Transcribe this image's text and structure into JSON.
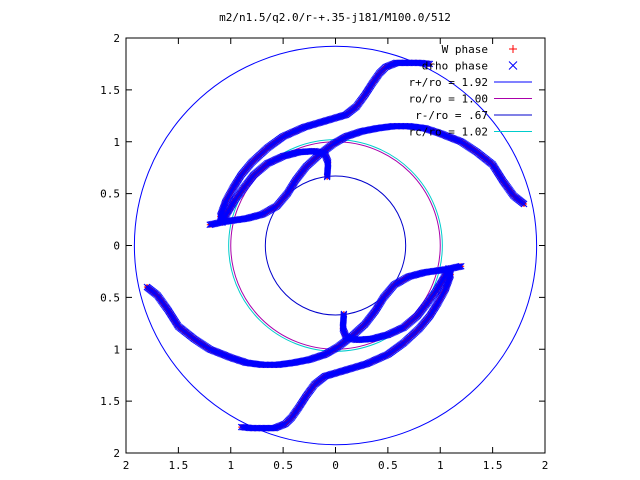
{
  "chart_data": {
    "type": "scatter",
    "title": "m2/n1.5/q2.0/r-+.35-j181/M100.0/512",
    "xlabel": "",
    "ylabel": "",
    "xlim": [
      2,
      -2
    ],
    "ylim": [
      -2,
      2
    ],
    "x_ticks": [
      {
        "v": 2,
        "label": "2"
      },
      {
        "v": 1.5,
        "label": "1.5"
      },
      {
        "v": 1,
        "label": "1"
      },
      {
        "v": 0.5,
        "label": "0.5"
      },
      {
        "v": 0,
        "label": "0"
      },
      {
        "v": -0.5,
        "label": "0.5"
      },
      {
        "v": -1,
        "label": "1"
      },
      {
        "v": -1.5,
        "label": "1.5"
      },
      {
        "v": -2,
        "label": "2"
      }
    ],
    "y_ticks": [
      {
        "v": 2,
        "label": "2"
      },
      {
        "v": 1.5,
        "label": "1.5"
      },
      {
        "v": 1,
        "label": "1"
      },
      {
        "v": 0.5,
        "label": "0.5"
      },
      {
        "v": 0,
        "label": "0"
      },
      {
        "v": -0.5,
        "label": "0.5"
      },
      {
        "v": -1,
        "label": "1"
      },
      {
        "v": -1.5,
        "label": "1.5"
      },
      {
        "v": -2,
        "label": "2"
      }
    ],
    "grid": false,
    "legend_position": "top-right",
    "circles": [
      {
        "name": "r+/ro = 1.92",
        "r": 1.92,
        "color": "#0000ff"
      },
      {
        "name": "ro/ro = 1.00",
        "r": 1.0,
        "color": "#aa00aa"
      },
      {
        "name": "r-/ro = .67",
        "r": 0.67,
        "color": "#0000cc"
      },
      {
        "name": "rc/ro = 1.02",
        "r": 1.02,
        "color": "#00cccc"
      }
    ],
    "series": [
      {
        "name": "W phase",
        "marker": "plus",
        "color": "#ff0000",
        "arms": [
          [
            [
              0.08,
              0.66
            ],
            [
              0.07,
              0.8
            ],
            [
              0.1,
              0.88
            ],
            [
              0.2,
              0.91
            ],
            [
              0.35,
              0.9
            ],
            [
              0.5,
              0.86
            ],
            [
              0.65,
              0.79
            ],
            [
              0.78,
              0.68
            ],
            [
              0.88,
              0.55
            ],
            [
              0.96,
              0.44
            ],
            [
              1.03,
              0.32
            ],
            [
              1.08,
              0.22
            ],
            [
              1.1,
              0.28
            ],
            [
              1.05,
              0.42
            ],
            [
              0.98,
              0.55
            ],
            [
              0.9,
              0.68
            ],
            [
              0.8,
              0.8
            ],
            [
              0.65,
              0.94
            ],
            [
              0.5,
              1.05
            ],
            [
              0.3,
              1.14
            ],
            [
              0.1,
              1.2
            ],
            [
              -0.1,
              1.26
            ],
            [
              -0.2,
              1.34
            ],
            [
              -0.28,
              1.45
            ],
            [
              -0.35,
              1.56
            ],
            [
              -0.42,
              1.66
            ],
            [
              -0.48,
              1.72
            ],
            [
              -0.58,
              1.76
            ],
            [
              -0.7,
              1.76
            ],
            [
              -0.8,
              1.76
            ],
            [
              -0.9,
              1.75
            ]
          ],
          [
            [
              1.2,
              0.2
            ],
            [
              1.06,
              0.23
            ],
            [
              0.85,
              0.26
            ],
            [
              0.7,
              0.3
            ],
            [
              0.56,
              0.38
            ],
            [
              0.46,
              0.5
            ],
            [
              0.38,
              0.63
            ],
            [
              0.28,
              0.76
            ],
            [
              0.15,
              0.88
            ],
            [
              0.02,
              0.98
            ],
            [
              -0.1,
              1.05
            ],
            [
              -0.25,
              1.1
            ],
            [
              -0.4,
              1.13
            ],
            [
              -0.55,
              1.15
            ],
            [
              -0.7,
              1.15
            ],
            [
              -0.85,
              1.13
            ],
            [
              -1.0,
              1.08
            ],
            [
              -1.2,
              1.0
            ],
            [
              -1.35,
              0.9
            ],
            [
              -1.5,
              0.78
            ],
            [
              -1.6,
              0.62
            ],
            [
              -1.7,
              0.48
            ],
            [
              -1.8,
              0.4
            ]
          ]
        ]
      },
      {
        "name": "drho phase",
        "marker": "cross",
        "color": "#0000ff",
        "arms": [
          [
            [
              0.08,
              0.66
            ],
            [
              0.07,
              0.8
            ],
            [
              0.1,
              0.88
            ],
            [
              0.2,
              0.91
            ],
            [
              0.35,
              0.9
            ],
            [
              0.5,
              0.86
            ],
            [
              0.65,
              0.79
            ],
            [
              0.78,
              0.68
            ],
            [
              0.88,
              0.55
            ],
            [
              0.96,
              0.44
            ],
            [
              1.03,
              0.32
            ],
            [
              1.08,
              0.22
            ],
            [
              1.1,
              0.28
            ],
            [
              1.05,
              0.42
            ],
            [
              0.98,
              0.55
            ],
            [
              0.9,
              0.68
            ],
            [
              0.8,
              0.8
            ],
            [
              0.65,
              0.94
            ],
            [
              0.5,
              1.05
            ],
            [
              0.3,
              1.14
            ],
            [
              0.1,
              1.2
            ],
            [
              -0.1,
              1.26
            ],
            [
              -0.2,
              1.34
            ],
            [
              -0.28,
              1.45
            ],
            [
              -0.35,
              1.56
            ],
            [
              -0.42,
              1.66
            ],
            [
              -0.48,
              1.72
            ],
            [
              -0.58,
              1.76
            ],
            [
              -0.7,
              1.76
            ],
            [
              -0.8,
              1.76
            ],
            [
              -0.9,
              1.75
            ]
          ],
          [
            [
              1.2,
              0.2
            ],
            [
              1.06,
              0.23
            ],
            [
              0.85,
              0.26
            ],
            [
              0.7,
              0.3
            ],
            [
              0.56,
              0.38
            ],
            [
              0.46,
              0.5
            ],
            [
              0.38,
              0.63
            ],
            [
              0.28,
              0.76
            ],
            [
              0.15,
              0.88
            ],
            [
              0.02,
              0.98
            ],
            [
              -0.1,
              1.05
            ],
            [
              -0.25,
              1.1
            ],
            [
              -0.4,
              1.13
            ],
            [
              -0.55,
              1.15
            ],
            [
              -0.7,
              1.15
            ],
            [
              -0.85,
              1.13
            ],
            [
              -1.0,
              1.08
            ],
            [
              -1.2,
              1.0
            ],
            [
              -1.35,
              0.9
            ],
            [
              -1.5,
              0.78
            ],
            [
              -1.6,
              0.62
            ],
            [
              -1.7,
              0.48
            ],
            [
              -1.8,
              0.4
            ]
          ]
        ]
      }
    ]
  }
}
